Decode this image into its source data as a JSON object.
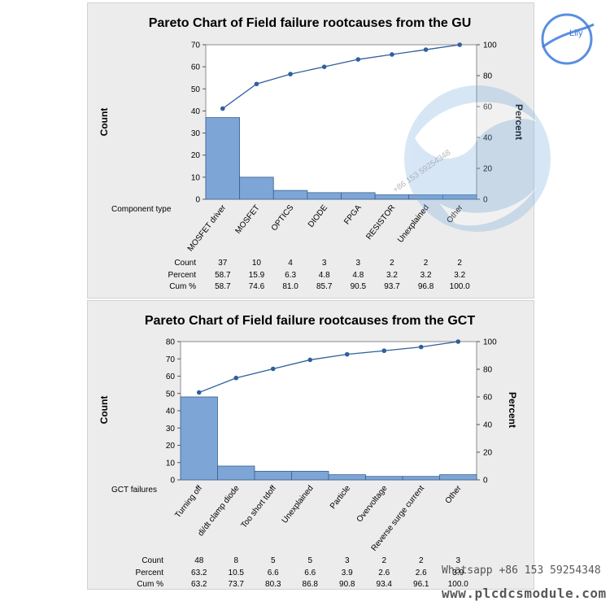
{
  "charts": {
    "gu": {
      "title": "Pareto Chart of Field failure rootcauses from the GU",
      "category_label": "Component type",
      "left_axis_label": "Count",
      "right_axis_label": "Percent",
      "table_labels": [
        "Count",
        "Percent",
        "Cum %"
      ]
    },
    "gct": {
      "title": "Pareto Chart of Field failure rootcauses from the GCT",
      "category_label": "GCT failures",
      "left_axis_label": "Count",
      "right_axis_label": "Percent",
      "table_labels": [
        "Count",
        "Percent",
        "Cum %"
      ]
    }
  },
  "chart_data": [
    {
      "type": "bar",
      "title": "Pareto Chart of Field failure rootcauses from the GU",
      "xlabel": "Component type",
      "ylabel": "Count",
      "y2label": "Percent",
      "categories": [
        "MOSFET driver",
        "MOSFET",
        "OPTICS",
        "DIODE",
        "FPGA",
        "RESISTOR",
        "Unexplained",
        "Other"
      ],
      "values": [
        37,
        10,
        4,
        3,
        3,
        2,
        2,
        2
      ],
      "percent": [
        "58.7",
        "15.9",
        "6.3",
        "4.8",
        "4.8",
        "3.2",
        "3.2",
        "3.2"
      ],
      "cum_percent": [
        "58.7",
        "74.6",
        "81.0",
        "85.7",
        "90.5",
        "93.7",
        "96.8",
        "100.0"
      ],
      "count_labels": [
        "37",
        "10",
        "4",
        "3",
        "3",
        "2",
        "2",
        "2"
      ],
      "ylim": [
        0,
        70
      ],
      "yticks": [
        0,
        10,
        20,
        30,
        40,
        50,
        60,
        70
      ],
      "y2lim": [
        0,
        100
      ],
      "y2ticks": [
        0,
        20,
        40,
        60,
        80,
        100
      ],
      "bar_color": "#7da6d6",
      "line_color": "#2f5f9e"
    },
    {
      "type": "bar",
      "title": "Pareto Chart of Field failure rootcauses from the GCT",
      "xlabel": "GCT failures",
      "ylabel": "Count",
      "y2label": "Percent",
      "categories": [
        "Turning off",
        "di/dt clamp diode",
        "Too short tdoff",
        "Unexplained",
        "Particle",
        "Overvoltage",
        "Reverse surge current",
        "Other"
      ],
      "values": [
        48,
        8,
        5,
        5,
        3,
        2,
        2,
        3
      ],
      "percent": [
        "63.2",
        "10.5",
        "6.6",
        "6.6",
        "3.9",
        "2.6",
        "2.6",
        "3.9"
      ],
      "cum_percent": [
        "63.2",
        "73.7",
        "80.3",
        "86.8",
        "90.8",
        "93.4",
        "96.1",
        "100.0"
      ],
      "count_labels": [
        "48",
        "8",
        "5",
        "5",
        "3",
        "2",
        "2",
        "3"
      ],
      "ylim": [
        0,
        80
      ],
      "yticks": [
        0,
        10,
        20,
        30,
        40,
        50,
        60,
        70,
        80
      ],
      "y2lim": [
        0,
        100
      ],
      "y2ticks": [
        0,
        20,
        40,
        60,
        80,
        100
      ],
      "bar_color": "#7da6d6",
      "line_color": "#2f5f9e"
    }
  ],
  "watermark": {
    "logo_text": "Lily",
    "phone_text": "Whatsapp +86 153 59254348",
    "url_text": "www.plcdcsmodule.com",
    "diagonal_text": "+86 153 59254348"
  }
}
